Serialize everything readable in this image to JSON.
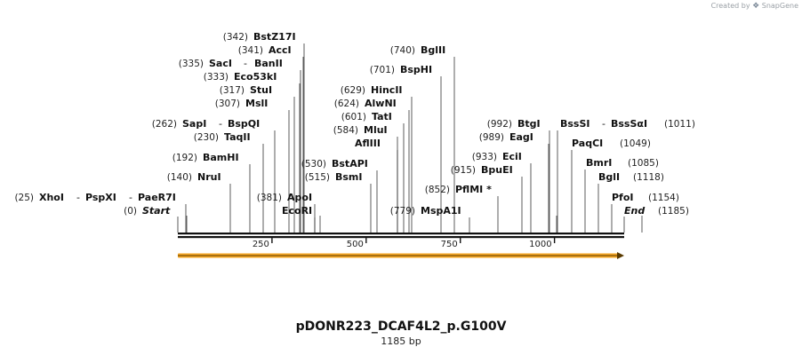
{
  "credit": {
    "prefix": "Created by",
    "brand": "SnapGene"
  },
  "plasmid": {
    "name": "pDONR223_DCAF4L2_p.G100V",
    "size_label": "1185 bp",
    "length": 1185
  },
  "ruler": {
    "ticks": [
      250,
      500,
      750,
      1000
    ]
  },
  "features": [
    {
      "name": "orf-arrow",
      "start": 1,
      "end": 1185,
      "color": "#f5a623",
      "direction": "forward"
    }
  ],
  "sites": [
    {
      "pos": "(25)",
      "name": "XhoI",
      "extra": [
        "PspXI",
        "PaeR7I"
      ],
      "bp": 25
    },
    {
      "pos": "(0)",
      "name": "Start",
      "italic": true,
      "bp": 0
    },
    {
      "pos": "(140)",
      "name": "NruI",
      "bp": 140
    },
    {
      "pos": "(192)",
      "name": "BamHI",
      "bp": 192
    },
    {
      "pos": "(230)",
      "name": "TaqII",
      "bp": 230
    },
    {
      "pos": "(262)",
      "name": "SapI",
      "extra": [
        "BspQI"
      ],
      "bp": 262
    },
    {
      "pos": "(307)",
      "name": "MslI",
      "bp": 307
    },
    {
      "pos": "(317)",
      "name": "StuI",
      "bp": 317
    },
    {
      "pos": "(333)",
      "name": "Eco53kI",
      "bp": 333
    },
    {
      "pos": "(335)",
      "name": "SacI",
      "extra": [
        "BanII"
      ],
      "bp": 335
    },
    {
      "pos": "(341)",
      "name": "AccI",
      "bp": 341
    },
    {
      "pos": "(342)",
      "name": "BstZ17I",
      "bp": 342
    },
    {
      "pos": "(381)",
      "name": "ApoI",
      "bp": 381
    },
    {
      "pos": "",
      "name": "EcoRI",
      "bp": 381
    },
    {
      "pos": "(530)",
      "name": "BstAPI",
      "bp": 530
    },
    {
      "pos": "(515)",
      "name": "BsmI",
      "bp": 515
    },
    {
      "pos": "",
      "name": "AflIII",
      "bp": 584
    },
    {
      "pos": "(584)",
      "name": "MluI",
      "bp": 584
    },
    {
      "pos": "(601)",
      "name": "TatI",
      "bp": 601
    },
    {
      "pos": "(624)",
      "name": "AlwNI",
      "bp": 624
    },
    {
      "pos": "(629)",
      "name": "HincII",
      "bp": 629
    },
    {
      "pos": "(701)",
      "name": "BspHI",
      "bp": 701
    },
    {
      "pos": "(740)",
      "name": "BglII",
      "bp": 740
    },
    {
      "pos": "(779)",
      "name": "MspA1I",
      "bp": 779
    },
    {
      "pos": "(852)",
      "name": "PflMI *",
      "bp": 852
    },
    {
      "pos": "(915)",
      "name": "BpuEI",
      "bp": 915
    },
    {
      "pos": "(933)",
      "name": "EciI",
      "bp": 933
    },
    {
      "pos": "(989)",
      "name": "EagI",
      "bp": 989
    },
    {
      "pos": "(992)",
      "name": "BtgI",
      "bp": 992
    },
    {
      "pos": "(1011)",
      "name": "BssSI",
      "extra": [
        "BssSαI"
      ],
      "pos_right": true,
      "bp": 1011
    },
    {
      "pos": "(1049)",
      "name": "PaqCI",
      "pos_right": true,
      "bp": 1049
    },
    {
      "pos": "(1085)",
      "name": "BmrI",
      "pos_right": true,
      "bp": 1085
    },
    {
      "pos": "(1118)",
      "name": "BglI",
      "pos_right": true,
      "bp": 1118
    },
    {
      "pos": "(1154)",
      "name": "PfoI",
      "pos_right": true,
      "bp": 1154
    },
    {
      "pos": "(1185)",
      "name": "End",
      "italic": true,
      "pos_right": true,
      "bp": 1185
    }
  ]
}
